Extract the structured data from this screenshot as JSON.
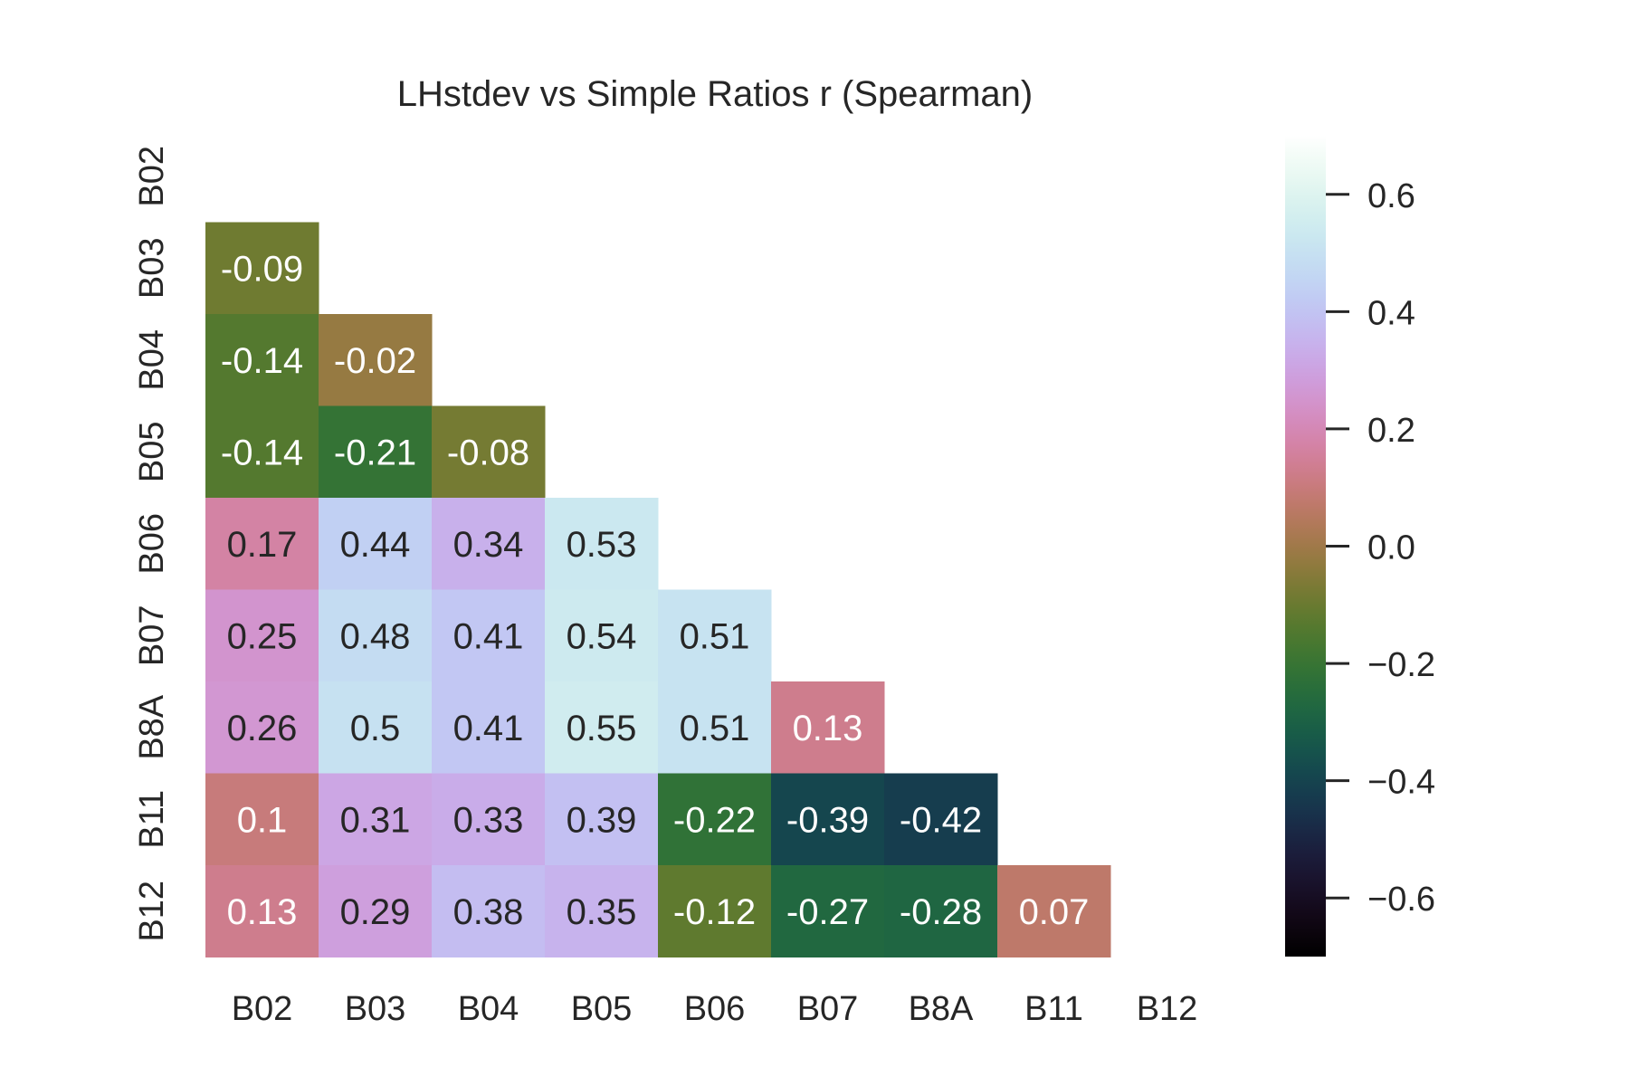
{
  "chart_data": {
    "type": "heatmap",
    "title": "LHstdev vs Simple Ratios r (Spearman)",
    "xlabel": "",
    "ylabel": "",
    "rows": [
      "B02",
      "B03",
      "B04",
      "B05",
      "B06",
      "B07",
      "B8A",
      "B11",
      "B12"
    ],
    "cols": [
      "B02",
      "B03",
      "B04",
      "B05",
      "B06",
      "B07",
      "B8A",
      "B11",
      "B12"
    ],
    "mask": "upper triangle including diagonal",
    "values": [
      [
        null,
        null,
        null,
        null,
        null,
        null,
        null,
        null,
        null
      ],
      [
        -0.09,
        null,
        null,
        null,
        null,
        null,
        null,
        null,
        null
      ],
      [
        -0.14,
        -0.02,
        null,
        null,
        null,
        null,
        null,
        null,
        null
      ],
      [
        -0.14,
        -0.21,
        -0.08,
        null,
        null,
        null,
        null,
        null,
        null
      ],
      [
        0.17,
        0.44,
        0.34,
        0.53,
        null,
        null,
        null,
        null,
        null
      ],
      [
        0.25,
        0.48,
        0.41,
        0.54,
        0.51,
        null,
        null,
        null,
        null
      ],
      [
        0.26,
        0.5,
        0.41,
        0.55,
        0.51,
        0.13,
        null,
        null,
        null
      ],
      [
        0.1,
        0.31,
        0.33,
        0.39,
        -0.22,
        -0.39,
        -0.42,
        null,
        null
      ],
      [
        0.13,
        0.29,
        0.38,
        0.35,
        -0.12,
        -0.27,
        -0.28,
        0.07,
        null
      ]
    ],
    "labels": [
      [
        null,
        null,
        null,
        null,
        null,
        null,
        null,
        null,
        null
      ],
      [
        "-0.09",
        null,
        null,
        null,
        null,
        null,
        null,
        null,
        null
      ],
      [
        "-0.14",
        "-0.02",
        null,
        null,
        null,
        null,
        null,
        null,
        null
      ],
      [
        "-0.14",
        "-0.21",
        "-0.08",
        null,
        null,
        null,
        null,
        null,
        null
      ],
      [
        "0.17",
        "0.44",
        "0.34",
        "0.53",
        null,
        null,
        null,
        null,
        null
      ],
      [
        "0.25",
        "0.48",
        "0.41",
        "0.54",
        "0.51",
        null,
        null,
        null,
        null
      ],
      [
        "0.26",
        "0.5",
        "0.41",
        "0.55",
        "0.51",
        "0.13",
        null,
        null,
        null
      ],
      [
        "0.1",
        "0.31",
        "0.33",
        "0.39",
        "-0.22",
        "-0.39",
        "-0.42",
        null,
        null
      ],
      [
        "0.13",
        "0.29",
        "0.38",
        "0.35",
        "-0.12",
        "-0.27",
        "-0.28",
        "0.07",
        null
      ]
    ],
    "colormap": "cubehelix",
    "vmin": -0.7,
    "vmax": 0.7,
    "colorbar": {
      "ticks": [
        0.6,
        0.4,
        0.2,
        0.0,
        -0.2,
        -0.4,
        -0.6
      ],
      "tick_labels": [
        "0.6",
        "0.4",
        "0.2",
        "0.0",
        "−0.2",
        "−0.4",
        "−0.6"
      ],
      "position": "right"
    },
    "grid": false
  }
}
